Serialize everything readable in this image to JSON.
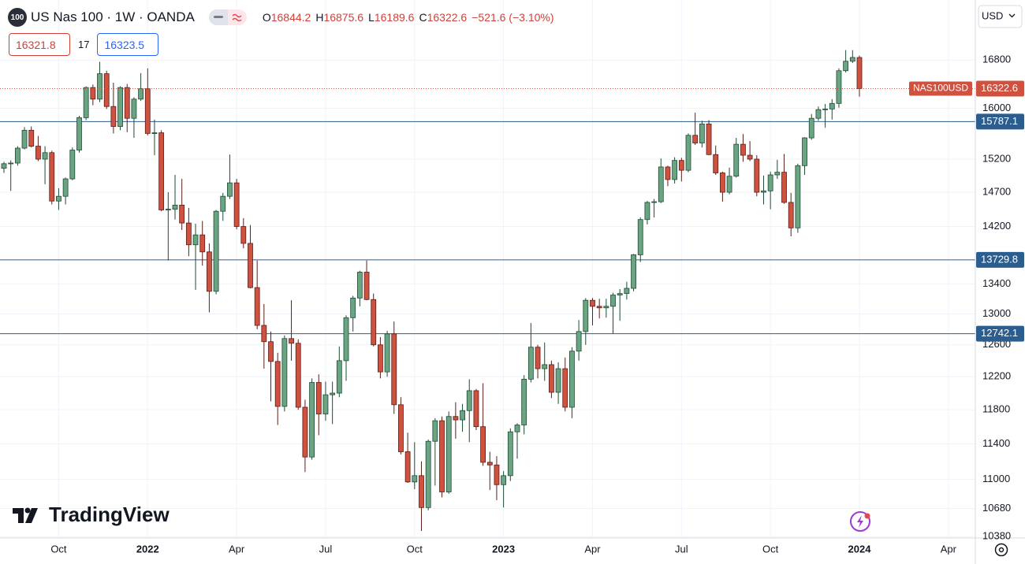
{
  "header": {
    "badge": "100",
    "symbol": "US Nas 100 · 1W · OANDA",
    "ohlc_letters": [
      "O",
      "H",
      "L",
      "C"
    ],
    "change": "−521.6 (−3.10%)",
    "sell": 16321.8,
    "spread": 17,
    "buy": 16323.5,
    "currency": "USD",
    "symbol_tag": "NAS100USD",
    "logo": "TradingView"
  },
  "chart_data": {
    "type": "candlestick",
    "categories": [
      null,
      null,
      null,
      null,
      null,
      null,
      null,
      null,
      "Oct",
      null,
      null,
      null,
      null,
      null,
      null,
      null,
      null,
      null,
      null,
      null,
      null,
      "2022",
      null,
      null,
      null,
      null,
      null,
      null,
      null,
      null,
      null,
      null,
      null,
      null,
      "Apr",
      null,
      null,
      null,
      null,
      null,
      null,
      null,
      null,
      null,
      null,
      null,
      null,
      "Jul",
      null,
      null,
      null,
      null,
      null,
      null,
      null,
      null,
      null,
      null,
      null,
      null,
      "Oct",
      null,
      null,
      null,
      null,
      null,
      null,
      null,
      null,
      null,
      null,
      null,
      null,
      "2023",
      null,
      null,
      null,
      null,
      null,
      null,
      null,
      null,
      null,
      null,
      null,
      null,
      "Apr",
      null,
      null,
      null,
      null,
      null,
      null,
      null,
      null,
      null,
      null,
      null,
      null,
      "Jul",
      null,
      null,
      null,
      null,
      null,
      null,
      null,
      null,
      null,
      null,
      null,
      null,
      "Oct",
      null,
      null,
      null,
      null,
      null,
      null,
      null,
      null,
      null,
      null,
      null,
      null,
      "2024",
      null,
      null,
      null,
      null,
      null,
      null,
      null,
      null,
      null,
      null,
      null,
      null,
      "Apr",
      null,
      null,
      null
    ],
    "ohlc": [
      [
        15060,
        15160,
        14990,
        15130
      ],
      [
        15130,
        15180,
        14720,
        15140
      ],
      [
        15140,
        15400,
        15100,
        15370
      ],
      [
        15370,
        15700,
        15350,
        15650
      ],
      [
        15650,
        15710,
        15380,
        15400
      ],
      [
        15400,
        15560,
        15170,
        15200
      ],
      [
        15200,
        15400,
        14820,
        15300
      ],
      [
        15300,
        15330,
        14520,
        14570
      ],
      [
        14570,
        14760,
        14440,
        14640
      ],
      [
        14640,
        14920,
        14520,
        14900
      ],
      [
        14900,
        15380,
        14880,
        15340
      ],
      [
        15340,
        15880,
        15300,
        15850
      ],
      [
        15850,
        16360,
        15810,
        16340
      ],
      [
        16340,
        16390,
        16050,
        16150
      ],
      [
        16150,
        16770,
        16100,
        16570
      ],
      [
        16570,
        16620,
        15990,
        16030
      ],
      [
        16030,
        16420,
        15600,
        15710
      ],
      [
        15710,
        16360,
        15650,
        16340
      ],
      [
        16340,
        16400,
        15620,
        15840
      ],
      [
        15840,
        16180,
        15530,
        16150
      ],
      [
        16150,
        16580,
        16120,
        16320
      ],
      [
        16320,
        16660,
        15570,
        15600
      ],
      [
        15600,
        15820,
        15260,
        15610
      ],
      [
        15610,
        15650,
        14420,
        14440
      ],
      [
        14440,
        14700,
        13720,
        14450
      ],
      [
        14450,
        14960,
        14300,
        14510
      ],
      [
        14510,
        14900,
        14150,
        14250
      ],
      [
        14250,
        14470,
        13780,
        13940
      ],
      [
        13940,
        14240,
        13320,
        14080
      ],
      [
        14080,
        14280,
        13650,
        13840
      ],
      [
        13840,
        13960,
        13020,
        13300
      ],
      [
        13300,
        14440,
        13260,
        14420
      ],
      [
        14420,
        14690,
        14280,
        14640
      ],
      [
        14640,
        15270,
        14600,
        14840
      ],
      [
        14840,
        14900,
        14160,
        14200
      ],
      [
        14200,
        14320,
        13890,
        13960
      ],
      [
        13960,
        14220,
        13340,
        13350
      ],
      [
        13350,
        13720,
        12800,
        12850
      ],
      [
        12850,
        13130,
        12300,
        12640
      ],
      [
        12640,
        12770,
        11900,
        12390
      ],
      [
        12390,
        12500,
        11620,
        11840
      ],
      [
        11840,
        12720,
        11780,
        12680
      ],
      [
        12680,
        13180,
        12400,
        12620
      ],
      [
        12620,
        12670,
        11800,
        11830
      ],
      [
        11830,
        11920,
        11080,
        11250
      ],
      [
        11250,
        12180,
        11220,
        12130
      ],
      [
        12130,
        12230,
        11500,
        11750
      ],
      [
        11750,
        12140,
        11670,
        11980
      ],
      [
        11980,
        12140,
        11630,
        12000
      ],
      [
        12000,
        12580,
        11950,
        12400
      ],
      [
        12400,
        12980,
        12150,
        12950
      ],
      [
        12950,
        13240,
        12770,
        13210
      ],
      [
        13210,
        13580,
        13100,
        13560
      ],
      [
        13560,
        13720,
        13180,
        13190
      ],
      [
        13190,
        13270,
        12580,
        12600
      ],
      [
        12600,
        12700,
        12180,
        12260
      ],
      [
        12260,
        12780,
        12200,
        12740
      ],
      [
        12740,
        12900,
        11750,
        11860
      ],
      [
        11860,
        11950,
        11280,
        11310
      ],
      [
        11310,
        11530,
        10960,
        10970
      ],
      [
        10970,
        11420,
        10890,
        11040
      ],
      [
        11040,
        11200,
        10440,
        10690
      ],
      [
        10690,
        11450,
        10660,
        11430
      ],
      [
        11430,
        11700,
        10930,
        11670
      ],
      [
        11670,
        11720,
        10800,
        10860
      ],
      [
        10860,
        11780,
        10840,
        11720
      ],
      [
        11720,
        11890,
        11460,
        11680
      ],
      [
        11680,
        11870,
        11540,
        11790
      ],
      [
        11790,
        12170,
        11420,
        12030
      ],
      [
        12030,
        12050,
        11560,
        11600
      ],
      [
        11600,
        12120,
        11150,
        11190
      ],
      [
        11190,
        11310,
        10880,
        11160
      ],
      [
        11160,
        11260,
        10770,
        10940
      ],
      [
        10940,
        11090,
        10690,
        11040
      ],
      [
        11040,
        11580,
        10980,
        11540
      ],
      [
        11540,
        11640,
        11230,
        11620
      ],
      [
        11620,
        12220,
        11510,
        12170
      ],
      [
        12170,
        12880,
        12130,
        12570
      ],
      [
        12570,
        12600,
        12180,
        12300
      ],
      [
        12300,
        12630,
        12150,
        12350
      ],
      [
        12350,
        12400,
        11940,
        12010
      ],
      [
        12010,
        12380,
        11870,
        12300
      ],
      [
        12300,
        12440,
        11780,
        11830
      ],
      [
        11830,
        12570,
        11700,
        12520
      ],
      [
        12520,
        12920,
        12400,
        12770
      ],
      [
        12770,
        13210,
        12600,
        13180
      ],
      [
        13180,
        13210,
        12850,
        13100
      ],
      [
        13100,
        13200,
        12940,
        13080
      ],
      [
        13080,
        13200,
        12950,
        13100
      ],
      [
        13100,
        13280,
        12740,
        13250
      ],
      [
        13250,
        13330,
        12910,
        13270
      ],
      [
        13270,
        13430,
        13190,
        13340
      ],
      [
        13340,
        13810,
        13300,
        13800
      ],
      [
        13800,
        14330,
        13700,
        14300
      ],
      [
        14300,
        14570,
        14230,
        14550
      ],
      [
        14550,
        14600,
        14330,
        14560
      ],
      [
        14560,
        15210,
        14540,
        15080
      ],
      [
        15080,
        15100,
        14790,
        14890
      ],
      [
        14890,
        15230,
        14830,
        15180
      ],
      [
        15180,
        15220,
        14860,
        15030
      ],
      [
        15030,
        15600,
        15000,
        15570
      ],
      [
        15570,
        15930,
        15420,
        15450
      ],
      [
        15450,
        15800,
        15380,
        15750
      ],
      [
        15750,
        15810,
        15260,
        15270
      ],
      [
        15270,
        15410,
        14960,
        14990
      ],
      [
        14990,
        15010,
        14560,
        14700
      ],
      [
        14700,
        15070,
        14670,
        14940
      ],
      [
        14940,
        15530,
        14920,
        15430
      ],
      [
        15430,
        15590,
        15160,
        15260
      ],
      [
        15260,
        15480,
        15170,
        15200
      ],
      [
        15200,
        15260,
        14640,
        14700
      ],
      [
        14700,
        14950,
        14520,
        14720
      ],
      [
        14720,
        15010,
        14450,
        14960
      ],
      [
        14960,
        15190,
        14900,
        15000
      ],
      [
        15000,
        15280,
        14530,
        14550
      ],
      [
        14550,
        14690,
        14060,
        14180
      ],
      [
        14180,
        15130,
        14110,
        15100
      ],
      [
        15100,
        15540,
        14960,
        15530
      ],
      [
        15530,
        15910,
        15500,
        15840
      ],
      [
        15840,
        16030,
        15800,
        15980
      ],
      [
        15980,
        16070,
        15690,
        15990
      ],
      [
        15990,
        16150,
        15820,
        16080
      ],
      [
        16080,
        16660,
        16010,
        16620
      ],
      [
        16620,
        16970,
        16590,
        16780
      ],
      [
        16780,
        16970,
        16750,
        16844.2
      ],
      [
        16844.2,
        16875.6,
        16189.6,
        16322.6
      ],
      null,
      null,
      null,
      null,
      null,
      null,
      null,
      null,
      null,
      null,
      null,
      null,
      null,
      null,
      null,
      null
    ],
    "ylim": [
      10366,
      17851
    ],
    "log_scale": true,
    "yticks": [
      10380,
      10680,
      11000,
      11400,
      11800,
      12200,
      12600,
      13000,
      13400,
      14200,
      14700,
      15200,
      16000,
      16800
    ],
    "hlines": [
      15787.1,
      13729.8,
      12742.1
    ],
    "grid": true,
    "up_color": "#6aa583",
    "down_color": "#cf513f",
    "hline_color": "#2c5d8f"
  }
}
